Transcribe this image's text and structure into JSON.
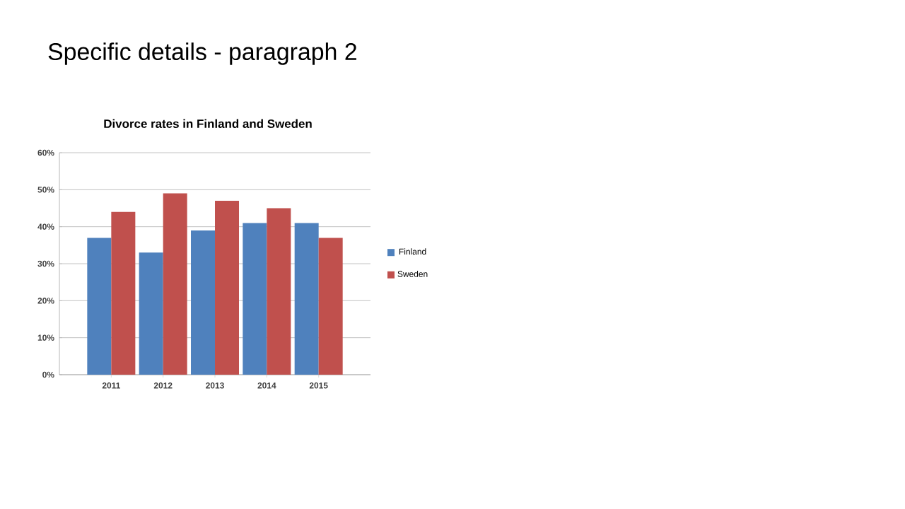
{
  "chart_data": {
    "type": "bar",
    "title": "Divorce rates in Finland and Sweden",
    "annotations": [
      "Specific details - paragraph 2"
    ],
    "categories": [
      "2011",
      "2012",
      "2013",
      "2014",
      "2015"
    ],
    "series": [
      {
        "name": "Finland",
        "color": "#4f81bd",
        "values": [
          37,
          33,
          39,
          41,
          41
        ]
      },
      {
        "name": "Sweden",
        "color": "#c0504d",
        "values": [
          44,
          49,
          47,
          45,
          37
        ]
      }
    ],
    "ylim": [
      0,
      60
    ],
    "yticks": [
      {
        "value": 0,
        "label": "0%"
      },
      {
        "value": 10,
        "label": "10%"
      },
      {
        "value": 20,
        "label": "20%"
      },
      {
        "value": 30,
        "label": "30%"
      },
      {
        "value": 40,
        "label": "40%"
      },
      {
        "value": 50,
        "label": "50%"
      },
      {
        "value": 60,
        "label": "60%"
      }
    ],
    "grid": "y",
    "legend": "right"
  }
}
